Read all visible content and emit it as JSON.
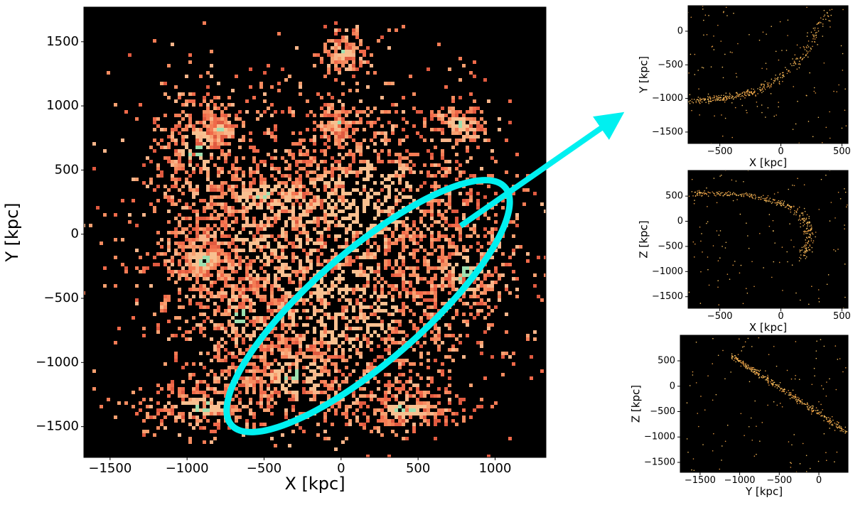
{
  "chart_data": [
    {
      "type": "hist2d",
      "xlabel": "X [kpc]",
      "ylabel": "Y [kpc]",
      "xlim": [
        -1670,
        1330
      ],
      "ylim": [
        -1740,
        1770
      ],
      "xticks": [
        {
          "value": -1500,
          "label": "−1500"
        },
        {
          "value": -1000,
          "label": "−1000"
        },
        {
          "value": -500,
          "label": "−500"
        },
        0,
        500,
        1000
      ],
      "yticks": [
        {
          "value": -1500,
          "label": "−1500"
        },
        {
          "value": -1000,
          "label": "−1000"
        },
        {
          "value": -500,
          "label": "−500"
        },
        0,
        500,
        1000,
        1500
      ]
    },
    {
      "type": "scatter",
      "xlabel": "X [kpc]",
      "ylabel": "Y [kpc]",
      "xlim": [
        -760,
        550
      ],
      "ylim": [
        -1670,
        380
      ],
      "xticks": [
        {
          "value": -500,
          "label": "−500"
        },
        0,
        500
      ],
      "yticks": [
        {
          "value": -1500,
          "label": "−1500"
        },
        {
          "value": -1000,
          "label": "−1000"
        },
        {
          "value": -500,
          "label": "−500"
        },
        0
      ]
    },
    {
      "type": "scatter",
      "xlabel": "X [kpc]",
      "ylabel": "Z [kpc]",
      "xlim": [
        -760,
        550
      ],
      "ylim": [
        -1730,
        1010
      ],
      "xticks": [
        {
          "value": -500,
          "label": "−500"
        },
        0,
        500
      ],
      "yticks": [
        {
          "value": -1500,
          "label": "−1500"
        },
        {
          "value": -1000,
          "label": "−1000"
        },
        {
          "value": -500,
          "label": "−500"
        },
        0,
        500
      ]
    },
    {
      "type": "scatter",
      "xlabel": "Y [kpc]",
      "ylabel": "Z [kpc]",
      "xlim": [
        -1750,
        368
      ],
      "ylim": [
        -1696,
        1004
      ],
      "xticks": [
        {
          "value": -1500,
          "label": "−1500"
        },
        {
          "value": -1000,
          "label": "−1000"
        },
        {
          "value": -500,
          "label": "−500"
        },
        0
      ],
      "yticks": [
        {
          "value": -1500,
          "label": "−1500"
        },
        {
          "value": -1000,
          "label": "−1000"
        },
        {
          "value": -500,
          "label": "−500"
        },
        0,
        500
      ]
    }
  ]
}
